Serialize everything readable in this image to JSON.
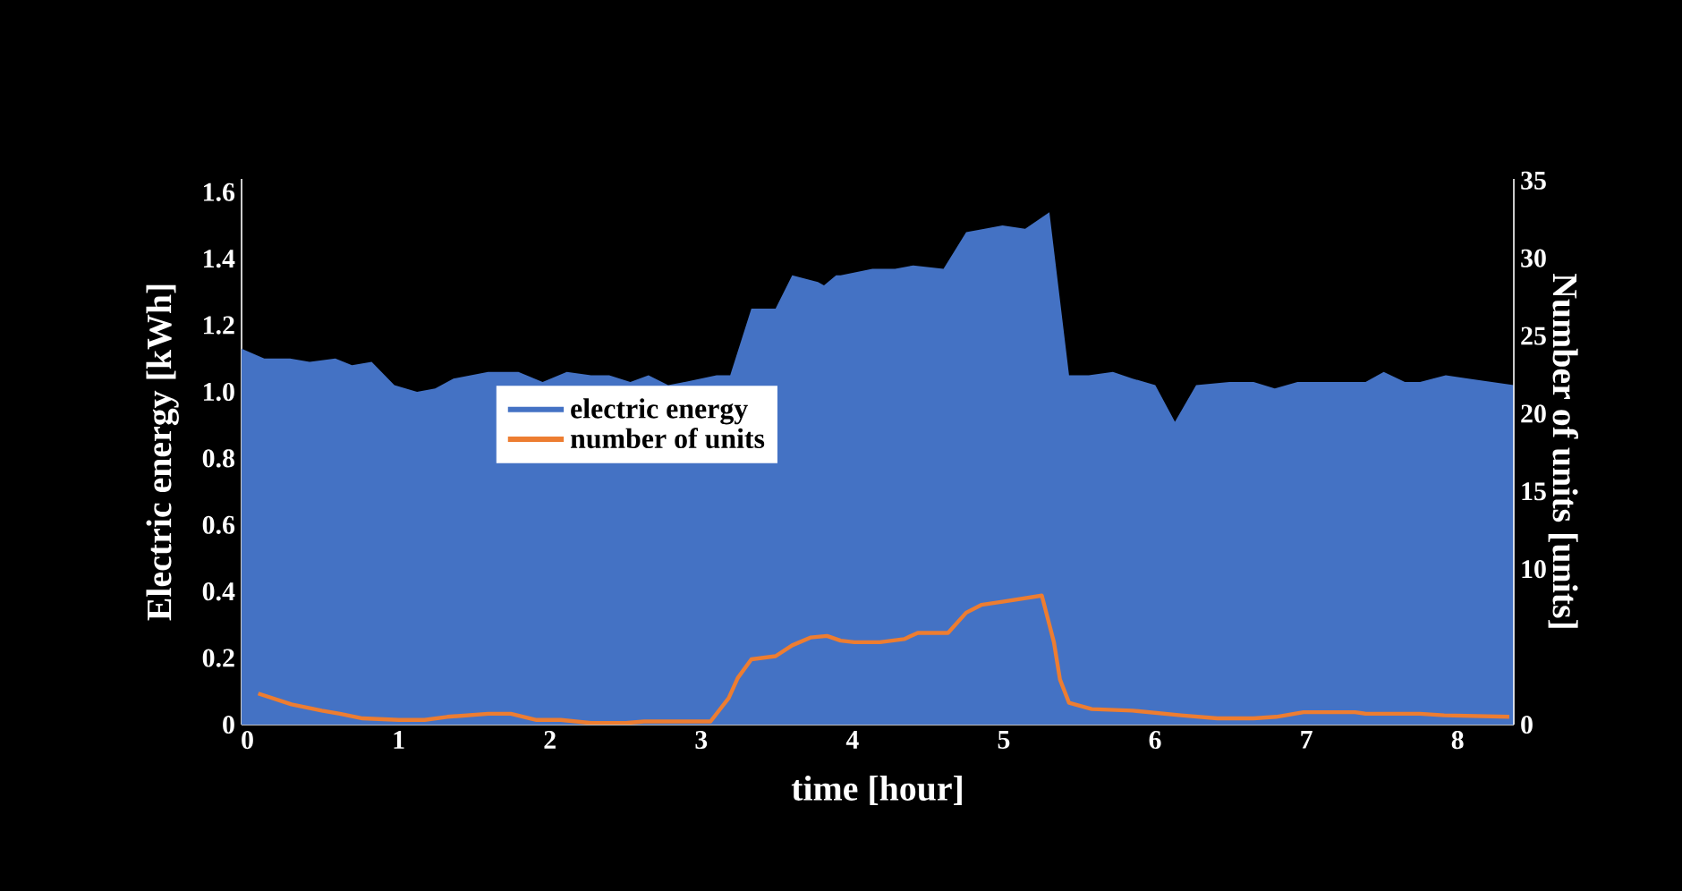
{
  "chart_data": {
    "type": "area",
    "xlabel": "time [hour]",
    "ylabel": "Electric energy [kWh]",
    "y2label": "Number of units [units]",
    "xlim": [
      0,
      8.41
    ],
    "xticks": [
      0,
      1,
      2,
      3,
      4,
      5,
      6,
      7,
      8
    ],
    "ylim": [
      0,
      1.64
    ],
    "yticks": [
      0,
      0.2,
      0.4,
      0.6,
      0.8,
      {
        "value": 1,
        "label": "1.0"
      },
      1.2,
      1.4,
      1.6
    ],
    "y2lim": [
      0,
      35.1
    ],
    "y2ticks": [
      0,
      10,
      15,
      20,
      25,
      30,
      35
    ],
    "legend": "left",
    "grid": false,
    "series": [
      {
        "name": "electric energy",
        "color": "#4472c4",
        "x": [
          0,
          0.15,
          0.32,
          0.45,
          0.62,
          0.73,
          0.86,
          1.01,
          1.16,
          1.28,
          1.4,
          1.63,
          1.83,
          1.99,
          2.15,
          2.31,
          2.43,
          2.57,
          2.69,
          2.82,
          2.93,
          3.14,
          3.23,
          3.37,
          3.53,
          3.64,
          3.81,
          3.85,
          3.93,
          3.96,
          4.17,
          4.32,
          4.44,
          4.64,
          4.79,
          5.03,
          5.18,
          5.34,
          5.47,
          5.6,
          5.76,
          5.89,
          6.04,
          6.17,
          6.31,
          6.53,
          6.69,
          6.83,
          6.98,
          7.43,
          7.55,
          7.69,
          7.79,
          7.96,
          8.11,
          8.26,
          8.41
        ],
        "values": [
          1.13,
          1.1,
          1.1,
          1.09,
          1.1,
          1.08,
          1.09,
          1.02,
          1.0,
          1.01,
          1.04,
          1.06,
          1.06,
          1.03,
          1.06,
          1.05,
          1.05,
          1.03,
          1.05,
          1.02,
          1.03,
          1.05,
          1.05,
          1.25,
          1.25,
          1.35,
          1.33,
          1.32,
          1.35,
          1.35,
          1.37,
          1.37,
          1.38,
          1.37,
          1.48,
          1.5,
          1.49,
          1.54,
          1.05,
          1.05,
          1.06,
          1.04,
          1.02,
          0.91,
          1.02,
          1.03,
          1.03,
          1.01,
          1.03,
          1.03,
          1.06,
          1.03,
          1.03,
          1.05,
          1.04,
          1.03,
          1.02
        ]
      },
      {
        "name": "number of units",
        "type": "line",
        "axis": "y2",
        "color": "#ed7d31",
        "x": [
          0.11,
          0.33,
          0.53,
          0.65,
          0.8,
          1.04,
          1.21,
          1.36,
          1.63,
          1.78,
          1.95,
          2.11,
          2.31,
          2.54,
          2.66,
          3.1,
          3.22,
          3.28,
          3.37,
          3.53,
          3.64,
          3.76,
          3.87,
          3.96,
          4.05,
          4.22,
          4.38,
          4.47,
          4.67,
          4.79,
          4.89,
          5.03,
          5.29,
          5.37,
          5.41,
          5.47,
          5.62,
          5.89,
          6.21,
          6.45,
          6.69,
          6.84,
          7.02,
          7.36,
          7.43,
          7.79,
          7.95,
          8.38
        ],
        "values": [
          2.0,
          1.3,
          0.9,
          0.7,
          0.4,
          0.3,
          0.3,
          0.5,
          0.7,
          0.7,
          0.3,
          0.3,
          0.1,
          0.1,
          0.2,
          0.2,
          1.7,
          3.0,
          4.2,
          4.4,
          5.1,
          5.6,
          5.7,
          5.4,
          5.3,
          5.3,
          5.5,
          5.9,
          5.9,
          7.2,
          7.7,
          7.9,
          8.3,
          5.3,
          2.9,
          1.4,
          1.0,
          0.9,
          0.6,
          0.4,
          0.4,
          0.5,
          0.8,
          0.8,
          0.7,
          0.7,
          0.6,
          0.5
        ]
      }
    ]
  }
}
